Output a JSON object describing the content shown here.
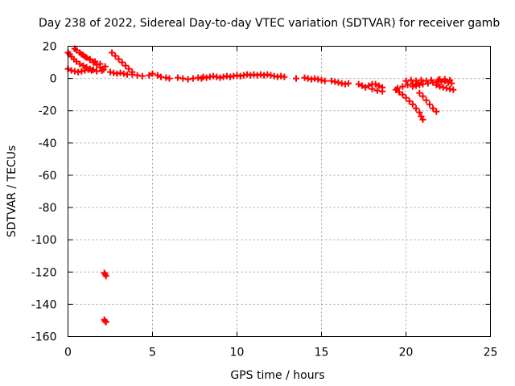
{
  "chart_data": {
    "type": "scatter",
    "title": "Day 238 of 2022, Sidereal Day-to-day VTEC variation (SDTVAR) for receiver gamb",
    "xlabel": "GPS time / hours",
    "ylabel": "SDTVAR / TECUs",
    "xlim": [
      0,
      25
    ],
    "ylim": [
      -160,
      20
    ],
    "xticks": [
      0,
      5,
      10,
      15,
      20,
      25
    ],
    "yticks": [
      20,
      0,
      -20,
      -40,
      -60,
      -80,
      -100,
      -120,
      -140,
      -160
    ],
    "xtick_labels": [
      "0",
      "5",
      "10",
      "15",
      "20",
      "25"
    ],
    "ytick_labels": [
      "20",
      "0",
      "-20",
      "-40",
      "-60",
      "-80",
      "-100",
      "-120",
      "-140",
      "-160"
    ],
    "grid": true,
    "marker": "plus",
    "series": [
      {
        "name": "sdtvar",
        "color": "#ff0000",
        "points": [
          [
            0.0,
            16.0
          ],
          [
            0.1,
            15.0
          ],
          [
            0.2,
            13.5
          ],
          [
            0.35,
            12.0
          ],
          [
            0.5,
            10.5
          ],
          [
            0.7,
            9.0
          ],
          [
            0.9,
            8.0
          ],
          [
            1.1,
            7.0
          ],
          [
            1.3,
            6.0
          ],
          [
            1.5,
            5.5
          ],
          [
            0.4,
            18.5
          ],
          [
            0.5,
            17.5
          ],
          [
            0.7,
            16.0
          ],
          [
            0.9,
            14.5
          ],
          [
            1.1,
            13.0
          ],
          [
            1.3,
            11.5
          ],
          [
            1.5,
            10.0
          ],
          [
            1.7,
            8.5
          ],
          [
            1.9,
            7.0
          ],
          [
            2.1,
            5.5
          ],
          [
            0.8,
            15.0
          ],
          [
            1.0,
            13.5
          ],
          [
            1.3,
            12.0
          ],
          [
            1.6,
            10.5
          ],
          [
            1.9,
            9.0
          ],
          [
            2.2,
            7.5
          ],
          [
            0.0,
            6.0
          ],
          [
            0.2,
            5.0
          ],
          [
            0.4,
            4.5
          ],
          [
            0.6,
            4.0
          ],
          [
            0.8,
            4.5
          ],
          [
            1.0,
            5.0
          ],
          [
            1.2,
            5.5
          ],
          [
            1.4,
            5.0
          ],
          [
            1.7,
            4.5
          ],
          [
            2.0,
            4.8
          ],
          [
            2.6,
            16.0
          ],
          [
            2.8,
            14.0
          ],
          [
            3.0,
            12.0
          ],
          [
            3.2,
            10.0
          ],
          [
            3.4,
            8.0
          ],
          [
            3.6,
            6.0
          ],
          [
            3.8,
            4.0
          ],
          [
            2.5,
            4.0
          ],
          [
            2.7,
            3.5
          ],
          [
            2.9,
            3.0
          ],
          [
            3.1,
            3.5
          ],
          [
            3.3,
            3.0
          ],
          [
            3.5,
            2.5
          ],
          [
            3.8,
            2.5
          ],
          [
            4.1,
            2.0
          ],
          [
            4.4,
            1.5
          ],
          [
            4.8,
            2.0
          ],
          [
            5.0,
            3.0
          ],
          [
            5.3,
            2.0
          ],
          [
            5.5,
            1.0
          ],
          [
            5.8,
            0.5
          ],
          [
            6.0,
            0.0
          ],
          [
            6.5,
            0.5
          ],
          [
            6.8,
            0.0
          ],
          [
            7.1,
            -0.5
          ],
          [
            7.4,
            0.0
          ],
          [
            7.7,
            0.5
          ],
          [
            7.9,
            0.0
          ],
          [
            8.0,
            1.0
          ],
          [
            8.2,
            0.5
          ],
          [
            8.4,
            1.0
          ],
          [
            8.6,
            1.5
          ],
          [
            8.8,
            1.0
          ],
          [
            9.0,
            0.5
          ],
          [
            9.2,
            1.0
          ],
          [
            9.4,
            1.5
          ],
          [
            9.6,
            1.0
          ],
          [
            9.8,
            1.5
          ],
          [
            10.0,
            2.0
          ],
          [
            10.2,
            1.5
          ],
          [
            10.4,
            2.0
          ],
          [
            10.6,
            2.5
          ],
          [
            10.8,
            2.0
          ],
          [
            11.0,
            2.5
          ],
          [
            11.2,
            2.0
          ],
          [
            11.4,
            2.5
          ],
          [
            11.6,
            2.0
          ],
          [
            11.8,
            2.5
          ],
          [
            12.0,
            2.0
          ],
          [
            12.2,
            1.5
          ],
          [
            12.4,
            1.0
          ],
          [
            12.6,
            1.5
          ],
          [
            12.8,
            1.0
          ],
          [
            13.5,
            0.0
          ],
          [
            14.0,
            0.5
          ],
          [
            14.2,
            0.0
          ],
          [
            14.4,
            -0.5
          ],
          [
            14.6,
            0.0
          ],
          [
            14.8,
            -0.5
          ],
          [
            15.0,
            -1.0
          ],
          [
            15.2,
            -1.5
          ],
          [
            15.6,
            -1.5
          ],
          [
            15.8,
            -2.0
          ],
          [
            16.0,
            -2.5
          ],
          [
            16.2,
            -3.0
          ],
          [
            16.4,
            -3.5
          ],
          [
            16.6,
            -3.0
          ],
          [
            17.2,
            -3.5
          ],
          [
            17.4,
            -4.5
          ],
          [
            17.6,
            -5.5
          ],
          [
            17.8,
            -4.5
          ],
          [
            18.0,
            -3.5
          ],
          [
            18.2,
            -3.5
          ],
          [
            18.4,
            -4.5
          ],
          [
            18.6,
            -5.5
          ],
          [
            18.0,
            -6.5
          ],
          [
            18.3,
            -7.5
          ],
          [
            18.6,
            -8.0
          ],
          [
            19.4,
            -7.0
          ],
          [
            19.6,
            -8.5
          ],
          [
            19.8,
            -10.0
          ],
          [
            20.0,
            -12.0
          ],
          [
            20.2,
            -14.0
          ],
          [
            20.4,
            -16.0
          ],
          [
            20.6,
            -18.5
          ],
          [
            20.8,
            -21.0
          ],
          [
            20.9,
            -23.5
          ],
          [
            21.0,
            -25.5
          ],
          [
            19.5,
            -6.0
          ],
          [
            19.8,
            -5.0
          ],
          [
            20.1,
            -4.0
          ],
          [
            20.4,
            -3.5
          ],
          [
            20.7,
            -3.0
          ],
          [
            20.0,
            -1.5
          ],
          [
            20.3,
            -1.0
          ],
          [
            20.6,
            -1.5
          ],
          [
            20.9,
            -1.0
          ],
          [
            21.2,
            -1.5
          ],
          [
            21.5,
            -1.0
          ],
          [
            20.8,
            -9.0
          ],
          [
            21.0,
            -11.0
          ],
          [
            21.2,
            -13.5
          ],
          [
            21.4,
            -16.0
          ],
          [
            21.6,
            -18.5
          ],
          [
            21.8,
            -20.5
          ],
          [
            20.4,
            -5.0
          ],
          [
            20.6,
            -4.5
          ],
          [
            20.8,
            -4.0
          ],
          [
            21.0,
            -3.5
          ],
          [
            21.3,
            -3.0
          ],
          [
            21.6,
            -2.5
          ],
          [
            21.9,
            -2.0
          ],
          [
            21.9,
            -1.0
          ],
          [
            22.1,
            -2.0
          ],
          [
            22.3,
            -1.5
          ],
          [
            22.5,
            -2.5
          ],
          [
            22.7,
            -3.0
          ],
          [
            21.8,
            -4.0
          ],
          [
            22.0,
            -5.0
          ],
          [
            22.2,
            -5.5
          ],
          [
            22.4,
            -6.0
          ],
          [
            22.6,
            -6.5
          ],
          [
            22.8,
            -7.0
          ],
          [
            22.0,
            -0.5
          ],
          [
            22.3,
            -0.5
          ],
          [
            22.6,
            -1.0
          ],
          [
            2.15,
            -120.5
          ],
          [
            2.2,
            -121.5
          ],
          [
            2.25,
            -122.5
          ],
          [
            2.15,
            -149.5
          ],
          [
            2.2,
            -150.5
          ],
          [
            2.25,
            -151.0
          ]
        ]
      }
    ]
  }
}
